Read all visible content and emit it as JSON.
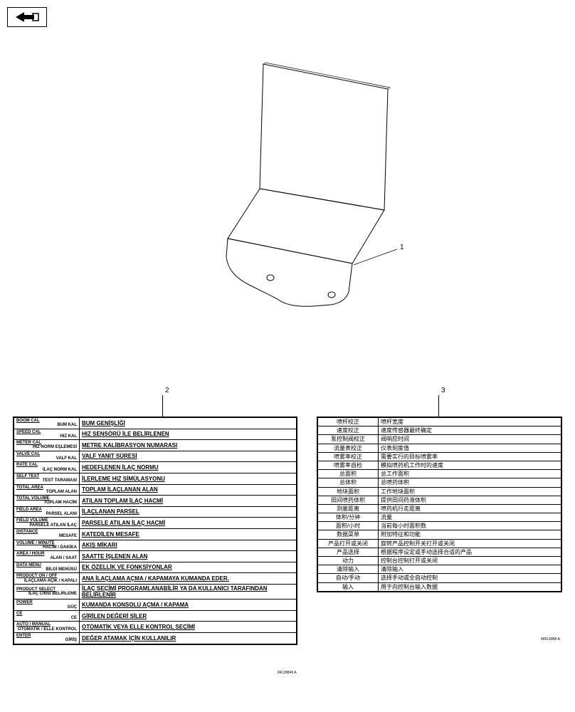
{
  "callouts": {
    "c1": "1",
    "c2": "2",
    "c3": "3"
  },
  "tableLeft": {
    "rows": [
      {
        "a": "BOOM CAL",
        "b": "BUM KAL",
        "v": "BUM GENİŞLİĞİ"
      },
      {
        "a": "SPEED CAL",
        "b": "HIZ KAL",
        "v": "HIZ SENSÖRÜ İLE BELİRLENEN"
      },
      {
        "a": "METER CAL",
        "b": "HIZ-NORM EŞLEMESİ",
        "v": "METRE KALİBRASYON NUMARASI"
      },
      {
        "a": "VALVE CAL",
        "b": "VALF KAL",
        "v": "VALF YANIT SÜRESİ"
      },
      {
        "a": "RATE CAL",
        "b": "İLAÇ NORM KAL",
        "v": "HEDEFLENEN İLAÇ NORMU"
      },
      {
        "a": "SELF TEST",
        "b": "TEST TARAMASI",
        "v": "İLERLEME HIZ SİMÜLASYONU"
      },
      {
        "a": "TOTAL AREA",
        "b": "TOPLAM ALAN",
        "v": "TOPLAM İLAÇLANAN ALAN"
      },
      {
        "a": "TOTAL VOLUME",
        "b": "TOPLAM HACİM",
        "v": "ATILAN TOPLAM İLAÇ HACMİ"
      },
      {
        "a": "FIELD AREA",
        "b": "PARSEL ALANI",
        "v": "İLAÇLANAN PARSEL"
      },
      {
        "a": "FIELD VOLUME",
        "b": "PARSELE ATILAN İLAÇ",
        "v": "PARSELE ATILAN İLAÇ HACMİ"
      },
      {
        "a": "DISTANCE",
        "b": "MESAFE",
        "v": "KATEDİLEN MESAFE"
      },
      {
        "a": "VOLUME / MINUTE",
        "b": "HACİM / DAKİKA",
        "v": "AKIŞ MİKARI"
      },
      {
        "a": "AREA / HOUR",
        "b": "ALAN / SAAT",
        "v": "SAATTE İŞLENEN ALAN"
      },
      {
        "a": "DATA MENU",
        "b": "BİLGİ MENÜSÜ",
        "v": "EK ÖZELLİK VE FONKSİYONLAR"
      },
      {
        "a": "PRODUCT ON / OFF",
        "b": "İLAÇLAMA AÇIK / KAPALI",
        "v": "ANA İLAÇLAMA AÇMA / KAPAMAYA KUMANDA EDER."
      },
      {
        "a": "PRODUCT SELECT",
        "b": "İLAÇ CİNSİ BELİRLEME",
        "v": "İLAÇ SEÇİMİ PROGRAMLANABİLİR YA DA KULLANICI TARAFINDAN BELİRLENİR"
      },
      {
        "a": "POWER",
        "b": "GÜÇ",
        "v": "KUMANDA KONSOLU AÇMA / KAPAMA"
      },
      {
        "a": "CE",
        "b": "CE",
        "v": "GİRİLEN DEĞERİ SİLER"
      },
      {
        "a": "AUTO / MANUAL",
        "b": "OTOMATİK / ELLE KONTROL",
        "v": "OTOMATİK VEYA ELLE KONTROL SEÇİMİ"
      },
      {
        "a": "ENTER",
        "b": "GİRİŞ",
        "v": "DEĞER ATAMAK İÇİN KULLANILIR"
      }
    ],
    "footnote": "84128849 A"
  },
  "tableRight": {
    "rows": [
      {
        "k": "喷杆校正",
        "v": "喷杆宽度"
      },
      {
        "k": "速度校正",
        "v": "速度传感器最终确定"
      },
      {
        "k": "泵控制阀校正",
        "v": "阀响应时间"
      },
      {
        "k": "流量表校正",
        "v": "仪表刻度值"
      },
      {
        "k": "喷雾率校正",
        "v": "需要实行的目标喷雾率"
      },
      {
        "k": "喷雾率自检",
        "v": "模拟喷药机工作时的速度"
      },
      {
        "k": "总面积",
        "v": "总工作面积"
      },
      {
        "k": "总体积",
        "v": "总喷药体积"
      },
      {
        "k": "地块面积",
        "v": "工作地块面积"
      },
      {
        "k": "田间喷药体积",
        "v": "提供田间药液体积"
      },
      {
        "k": "测量距离",
        "v": "喷药机行走距离"
      },
      {
        "k": "体积/分钟",
        "v": "流量"
      },
      {
        "k": "面积/小时",
        "v": "当前每小时面积数"
      },
      {
        "k": "数据菜单",
        "v": "附加特征和功能"
      },
      {
        "k": "产品打开或关闭",
        "v": "旋转产品控制开关打开或关闭"
      },
      {
        "k": "产品选择",
        "v": "根据程序设定或手动选择合适的产品"
      },
      {
        "k": "动力",
        "v": "控制台控制打开或关闭"
      },
      {
        "k": "清除输入",
        "v": "清除输入"
      },
      {
        "k": "自动/手动",
        "v": "选择手动或全自动控制"
      },
      {
        "k": "输入",
        "v": "用于向控制台输入数据"
      }
    ],
    "footnote": "84914988 A"
  }
}
